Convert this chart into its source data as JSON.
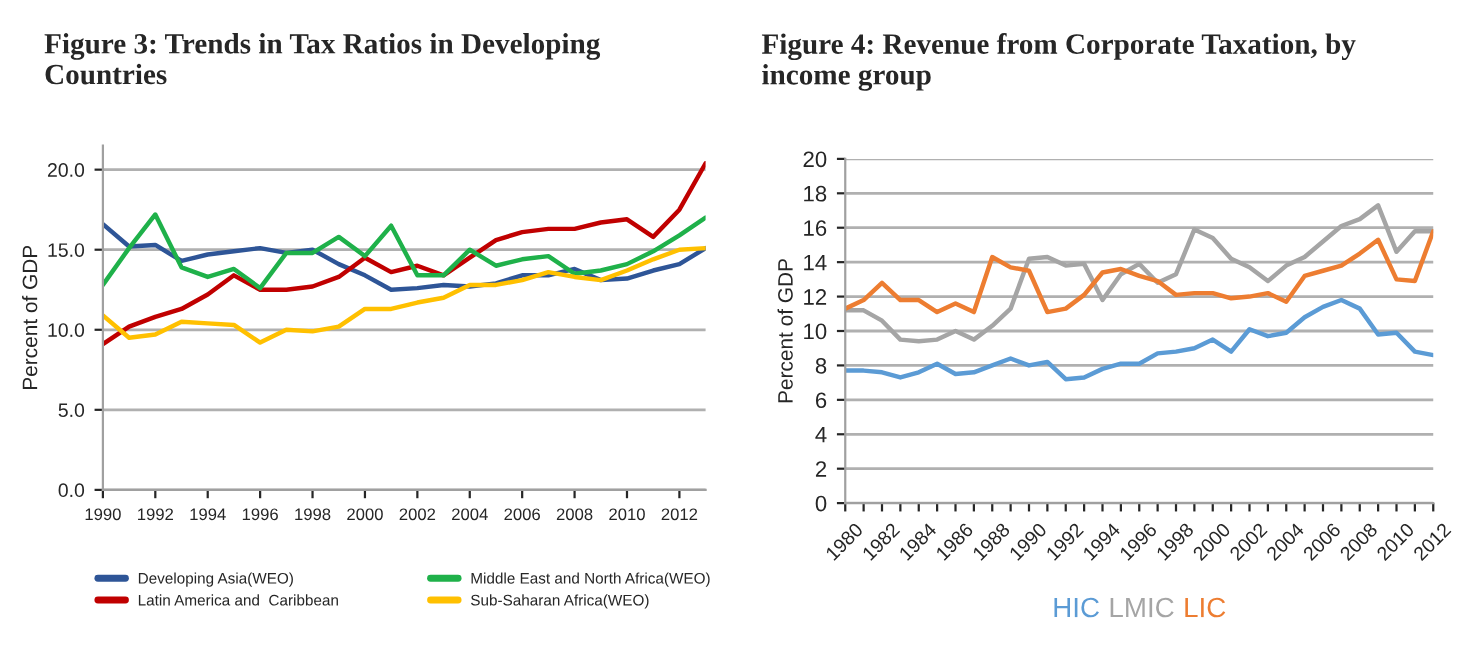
{
  "chart_data": [
    {
      "type": "line",
      "title": "Figure 3: Trends in Tax Ratios in Developing\nCountries",
      "ylabel": "Percent of GDP",
      "x": [
        1990,
        1991,
        1992,
        1993,
        1994,
        1995,
        1996,
        1997,
        1998,
        1999,
        2000,
        2001,
        2002,
        2003,
        2004,
        2005,
        2006,
        2007,
        2008,
        2009,
        2010,
        2011,
        2012,
        2013
      ],
      "xlim": [
        1990,
        2013
      ],
      "xticks": [
        1990,
        1992,
        1994,
        1996,
        1998,
        2000,
        2002,
        2004,
        2006,
        2008,
        2010,
        2012
      ],
      "ylim": [
        0,
        21.5
      ],
      "yticks": [
        {
          "value": 0,
          "label": "0.0"
        },
        {
          "value": 5,
          "label": "5.0"
        },
        {
          "value": 10,
          "label": "10.0"
        },
        {
          "value": 15,
          "label": "15.0"
        },
        {
          "value": 20,
          "label": "20.0"
        }
      ],
      "grid": "y",
      "legend": "bottom",
      "marker": "none",
      "line_style": "solid",
      "series": [
        {
          "name": "Developing Asia(WEO)",
          "color": "#2e5597",
          "values": [
            16.6,
            15.2,
            15.3,
            14.3,
            14.7,
            14.9,
            15.1,
            14.8,
            15.0,
            14.1,
            13.4,
            12.5,
            12.6,
            12.8,
            12.7,
            12.9,
            13.4,
            13.4,
            13.8,
            13.1,
            13.2,
            13.7,
            14.1,
            15.1
          ]
        },
        {
          "name": "Latin America and  Caribbean",
          "color": "#c00000",
          "values": [
            9.1,
            10.2,
            10.8,
            11.3,
            12.2,
            13.4,
            12.5,
            12.5,
            12.7,
            13.3,
            14.5,
            13.6,
            14.0,
            13.4,
            14.5,
            15.6,
            16.1,
            16.3,
            16.3,
            16.7,
            16.9,
            15.8,
            17.5,
            20.4
          ]
        },
        {
          "name": "Middle East and North Africa(WEO)",
          "color": "#1fb14a",
          "values": [
            12.8,
            15.1,
            17.2,
            13.9,
            13.3,
            13.8,
            12.6,
            14.8,
            14.8,
            15.8,
            14.6,
            16.5,
            13.4,
            13.4,
            15.0,
            14.0,
            14.4,
            14.6,
            13.5,
            13.7,
            14.1,
            14.9,
            15.9,
            17.0
          ]
        },
        {
          "name": "Sub-Saharan Africa(WEO)",
          "color": "#ffc000",
          "values": [
            10.9,
            9.5,
            9.7,
            10.5,
            10.4,
            10.3,
            9.2,
            10.0,
            9.9,
            10.2,
            11.3,
            11.3,
            11.7,
            12.0,
            12.8,
            12.8,
            13.1,
            13.6,
            13.3,
            13.1,
            13.7,
            14.4,
            15.0,
            15.1
          ]
        }
      ]
    },
    {
      "type": "line",
      "title": "Figure 4: Revenue from Corporate Taxation, by\nincome group",
      "ylabel": "Percent of GDP",
      "x": [
        1980,
        1981,
        1982,
        1983,
        1984,
        1985,
        1986,
        1987,
        1988,
        1989,
        1990,
        1991,
        1992,
        1993,
        1994,
        1995,
        1996,
        1997,
        1998,
        1999,
        2000,
        2001,
        2002,
        2003,
        2004,
        2005,
        2006,
        2007,
        2008,
        2009,
        2010,
        2011,
        2012
      ],
      "xlim": [
        1980,
        2012
      ],
      "xticks": [
        1980,
        {
          "value": 1981,
          "label": null
        },
        1982,
        {
          "value": 1983,
          "label": null
        },
        1984,
        {
          "value": 1985,
          "label": null
        },
        1986,
        {
          "value": 1987,
          "label": null
        },
        1988,
        {
          "value": 1989,
          "label": null
        },
        1990,
        {
          "value": 1991,
          "label": null
        },
        1992,
        {
          "value": 1993,
          "label": null
        },
        1994,
        {
          "value": 1995,
          "label": null
        },
        1996,
        {
          "value": 1997,
          "label": null
        },
        1998,
        {
          "value": 1999,
          "label": null
        },
        2000,
        {
          "value": 2001,
          "label": null
        },
        2002,
        {
          "value": 2003,
          "label": null
        },
        2004,
        {
          "value": 2005,
          "label": null
        },
        2006,
        {
          "value": 2007,
          "label": null
        },
        2008,
        {
          "value": 2009,
          "label": null
        },
        2010,
        {
          "value": 2011,
          "label": null
        },
        2012
      ],
      "ylim": [
        0,
        20
      ],
      "yticks": [
        0,
        2,
        4,
        6,
        8,
        10,
        12,
        14,
        16,
        18,
        20
      ],
      "grid": "y",
      "legend": "bottom",
      "marker": "none",
      "line_style": "solid",
      "series": [
        {
          "name": "HIC",
          "color": "#5b9bd5",
          "values": [
            7.7,
            7.7,
            7.6,
            7.3,
            7.6,
            8.1,
            7.5,
            7.6,
            8.0,
            8.4,
            8.0,
            8.2,
            7.2,
            7.3,
            7.8,
            8.1,
            8.1,
            8.7,
            8.8,
            9.0,
            9.5,
            8.8,
            10.1,
            9.7,
            9.9,
            10.8,
            11.4,
            11.8,
            11.3,
            9.8,
            9.9,
            8.8,
            8.6
          ]
        },
        {
          "name": "LMIC",
          "color": "#a5a5a5",
          "values": [
            11.2,
            11.2,
            10.6,
            9.5,
            9.4,
            9.5,
            10.0,
            9.5,
            10.3,
            11.3,
            14.2,
            14.3,
            13.8,
            13.9,
            11.8,
            13.3,
            13.9,
            12.8,
            13.3,
            15.9,
            15.4,
            14.2,
            13.7,
            12.9,
            13.8,
            14.3,
            15.2,
            16.1,
            16.5,
            17.3,
            14.6,
            15.8,
            15.8
          ]
        },
        {
          "name": "LIC",
          "color": "#ed7d31",
          "values": [
            11.3,
            11.8,
            12.8,
            11.8,
            11.8,
            11.1,
            11.6,
            11.1,
            14.3,
            13.7,
            13.5,
            11.1,
            11.3,
            12.1,
            13.4,
            13.6,
            13.2,
            12.9,
            12.1,
            12.2,
            12.2,
            11.9,
            12.0,
            12.2,
            11.7,
            13.2,
            13.5,
            13.8,
            14.5,
            15.3,
            13.0,
            12.9,
            15.8
          ]
        }
      ]
    }
  ]
}
